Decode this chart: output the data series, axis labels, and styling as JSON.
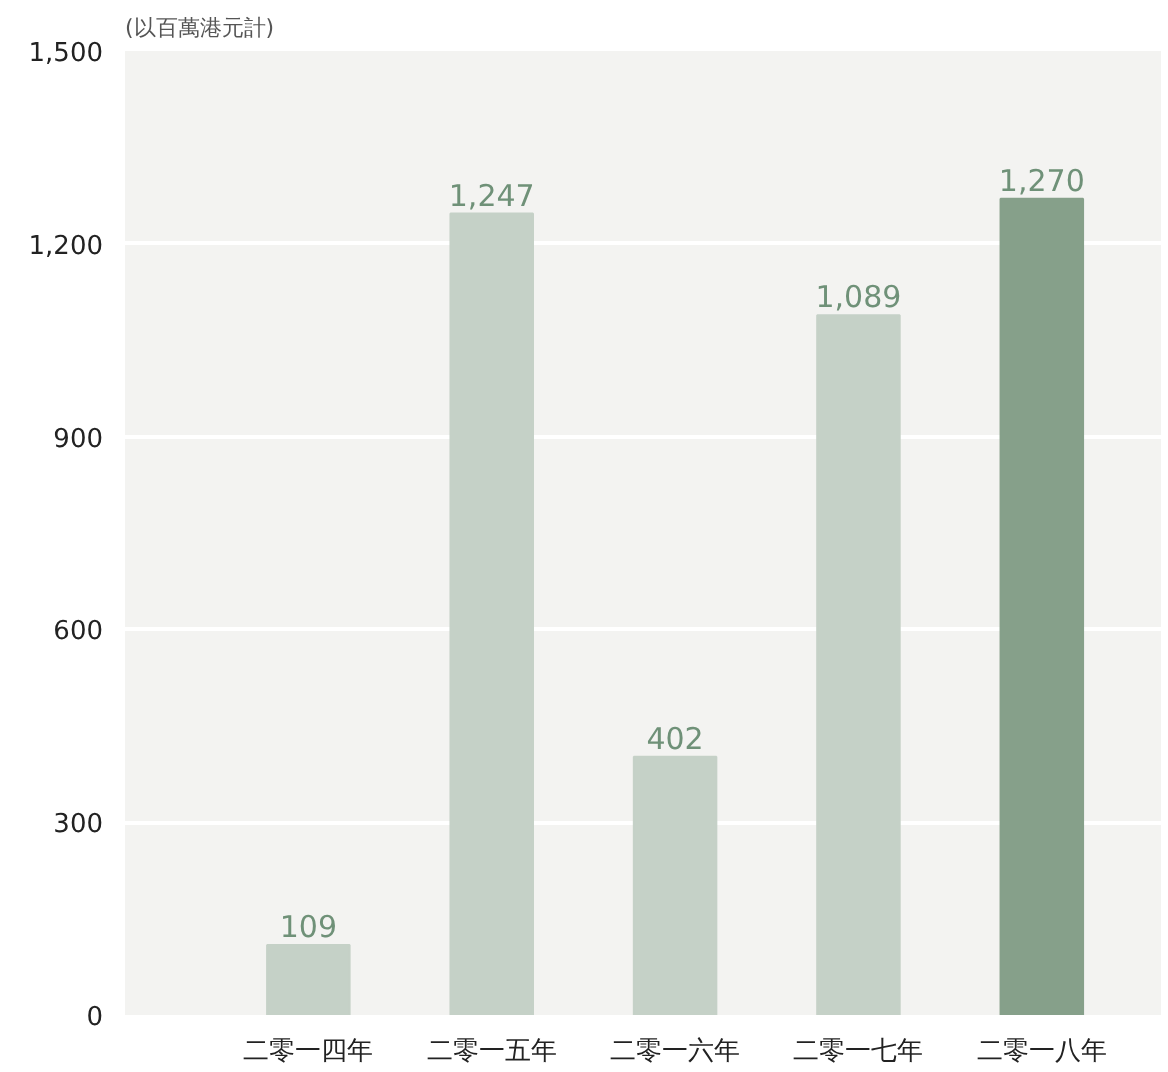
{
  "chart_data": {
    "type": "bar",
    "ylabel": "(以百萬港元計)",
    "categories": [
      "二零一四年",
      "二零一五年",
      "二零一六年",
      "二零一七年",
      "二零一八年"
    ],
    "values": [
      109,
      1247,
      402,
      1089,
      1270
    ],
    "colors": [
      "#c5d1c7",
      "#c5d1c7",
      "#c5d1c7",
      "#c5d1c7",
      "#86a08a"
    ],
    "value_labels": [
      "109",
      "1,247",
      "402",
      "1,089",
      "1,270"
    ],
    "ylim": [
      0,
      1500
    ],
    "yticks": [
      0,
      {
        "value": 300,
        "label": "300"
      },
      {
        "value": 600,
        "label": "600"
      },
      {
        "value": 900,
        "label": "900"
      },
      {
        "value": 1200,
        "label": "1,200"
      },
      {
        "value": 1500,
        "label": "1,500"
      }
    ],
    "grid": "y"
  }
}
